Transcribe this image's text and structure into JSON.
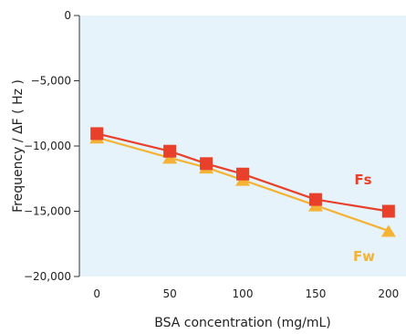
{
  "chart_data": {
    "type": "line",
    "title": "",
    "xlabel": "BSA concentration (mg/mL)",
    "ylabel": "Frequency / ΔF ( Hz )",
    "xlim": [
      -12,
      212
    ],
    "ylim": [
      -20000,
      0
    ],
    "x_ticks": [
      0,
      50,
      100,
      150,
      200
    ],
    "x_tick_labels": [
      "0",
      "50",
      "100",
      "150",
      "200"
    ],
    "y_ticks": [
      0,
      -5000,
      -10000,
      -15000,
      -20000
    ],
    "y_tick_labels": [
      "0",
      "−5,000",
      "−10,000",
      "−15,000",
      "−20,000"
    ],
    "grid": false,
    "background_color": "#e6f3fb",
    "series": [
      {
        "name": "Fs",
        "color": "#e8402a",
        "marker": "square",
        "x": [
          0,
          50,
          75,
          100,
          150,
          200
        ],
        "values": [
          -9050,
          -10400,
          -11350,
          -12150,
          -14100,
          -15000
        ]
      },
      {
        "name": "Fw",
        "color": "#f5b335",
        "marker": "triangle",
        "x": [
          0,
          50,
          75,
          100,
          150,
          200
        ],
        "values": [
          -9350,
          -10900,
          -11650,
          -12600,
          -14550,
          -16500
        ]
      }
    ]
  }
}
